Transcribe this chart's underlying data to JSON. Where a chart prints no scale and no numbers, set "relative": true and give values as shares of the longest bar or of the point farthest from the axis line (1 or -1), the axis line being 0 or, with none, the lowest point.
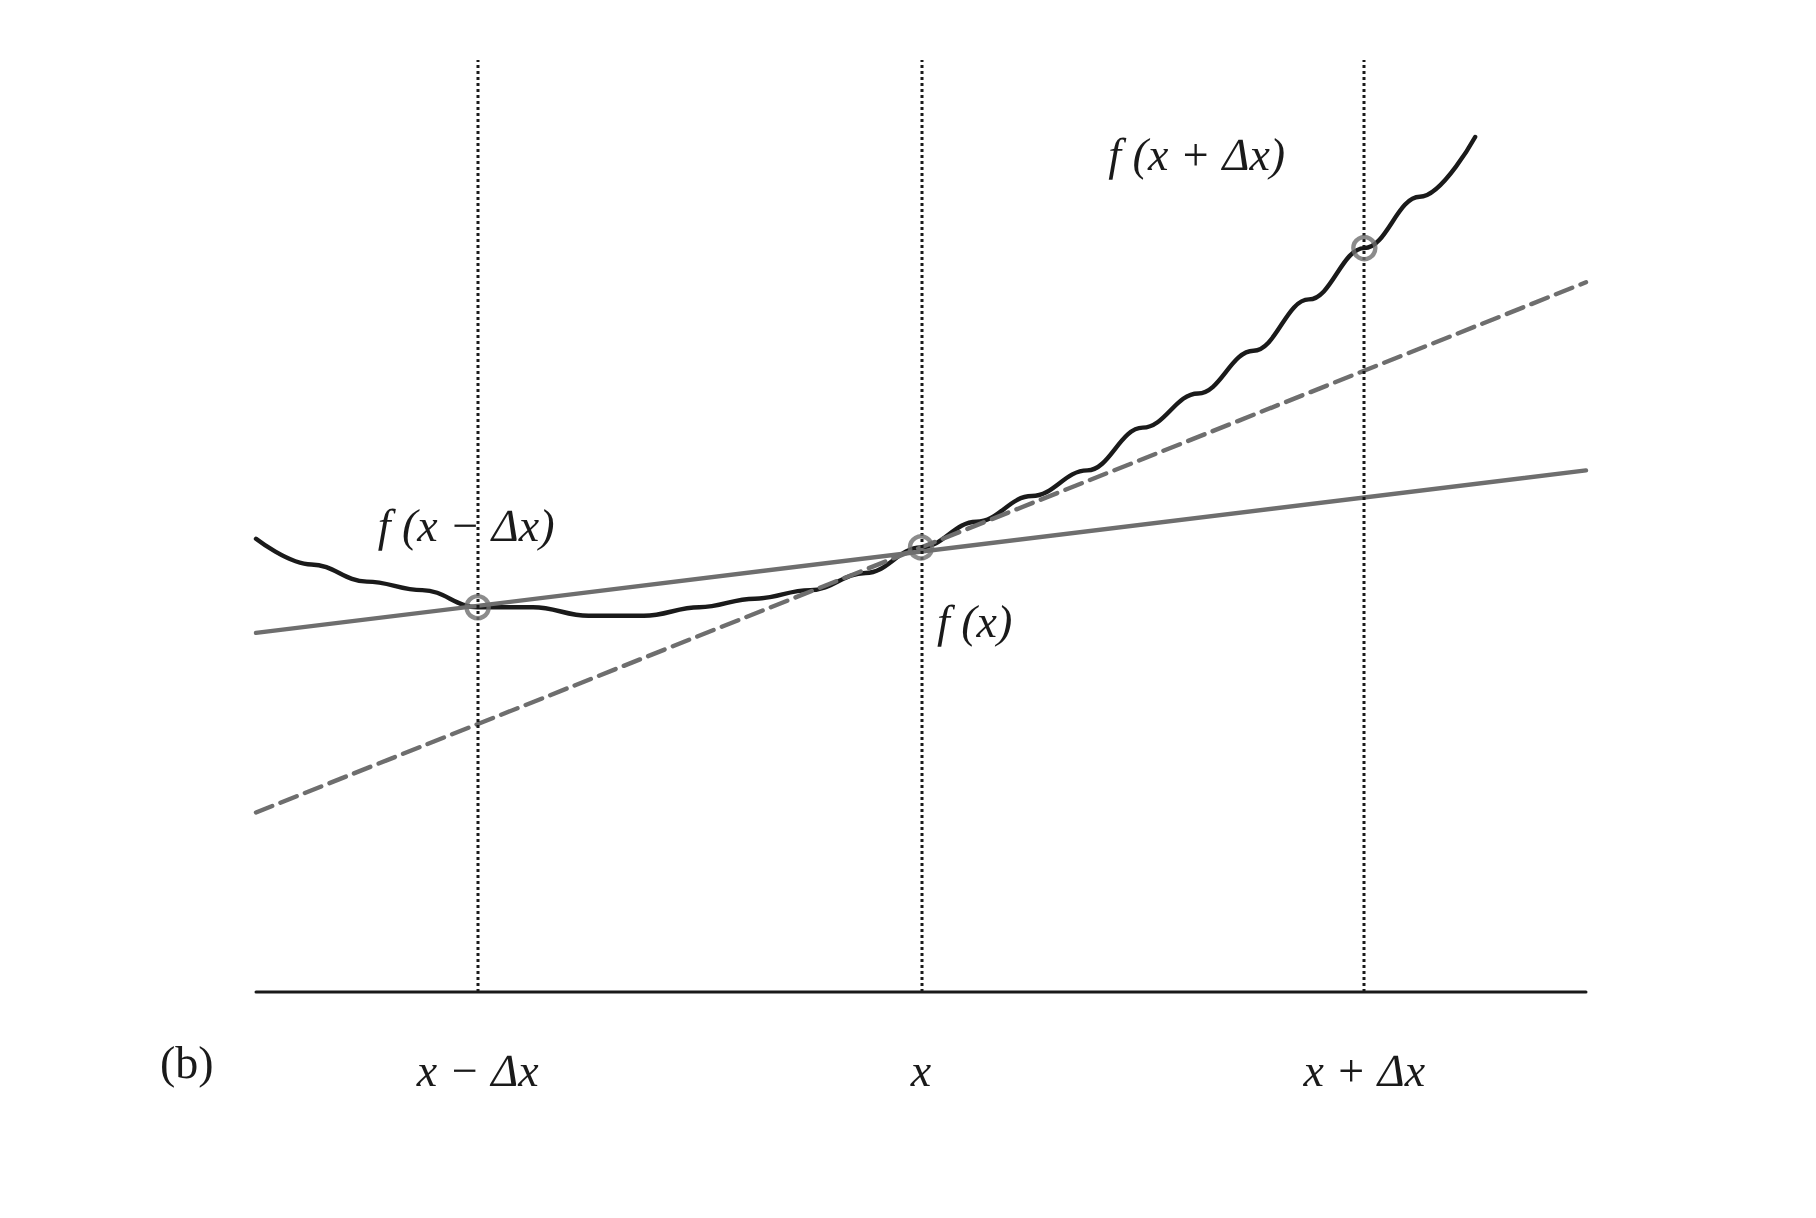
{
  "chart_data": {
    "type": "line",
    "relative": true,
    "categories": [
      null,
      null,
      null,
      null,
      "x − Δx",
      null,
      null,
      null,
      null,
      null,
      null,
      null,
      "x",
      null,
      null,
      null,
      null,
      null,
      null,
      null,
      "x + Δx",
      null,
      null,
      null,
      null
    ],
    "series": [
      {
        "color": "#1a1a1a",
        "line_style": "solid",
        "marker": "none",
        "values": [
          0.53,
          0.5,
          0.48,
          0.47,
          0.45,
          0.45,
          0.44,
          0.44,
          0.45,
          0.46,
          0.47,
          0.49,
          0.52,
          0.55,
          0.58,
          0.61,
          0.66,
          0.7,
          0.75,
          0.81,
          0.87,
          0.93,
          1,
          null,
          null
        ]
      },
      {
        "color": "#6e6e6e",
        "line_style": "solid",
        "marker": "none",
        "values": [
          0.42,
          null,
          null,
          null,
          null,
          null,
          null,
          null,
          null,
          null,
          null,
          null,
          null,
          null,
          null,
          null,
          null,
          null,
          null,
          null,
          null,
          null,
          null,
          null,
          0.61
        ]
      },
      {
        "color": "#6e6e6e",
        "line_style": "dashed",
        "marker": "none",
        "values": [
          0.21,
          null,
          null,
          null,
          null,
          null,
          null,
          null,
          null,
          null,
          null,
          null,
          null,
          null,
          null,
          null,
          null,
          null,
          null,
          null,
          null,
          null,
          null,
          null,
          0.83
        ]
      },
      {
        "type": "scatter",
        "color": "#6e6e6e",
        "marker": "circle",
        "values": [
          null,
          null,
          null,
          null,
          0.45,
          null,
          null,
          null,
          null,
          null,
          null,
          null,
          0.52,
          null,
          null,
          null,
          null,
          null,
          null,
          null,
          0.87,
          null,
          null,
          null,
          null
        ]
      }
    ],
    "ref_lines": [
      {
        "axis": "x",
        "value": "x − Δx",
        "color": "#1a1a1a",
        "line_style": "dotted"
      },
      {
        "axis": "x",
        "value": "x",
        "color": "#1a1a1a",
        "line_style": "dotted"
      },
      {
        "axis": "x",
        "value": "x + Δx",
        "color": "#1a1a1a",
        "line_style": "dotted"
      }
    ],
    "annotations": [
      {
        "text": "f (x − Δx)",
        "x": "x − Δx",
        "y": 0.45
      },
      {
        "text": "f (x)",
        "x": "x",
        "y": 0.52
      },
      {
        "text": "f (x + Δx)",
        "x": "x + Δx",
        "y": 0.87
      },
      "(b)"
    ],
    "grid": false
  }
}
